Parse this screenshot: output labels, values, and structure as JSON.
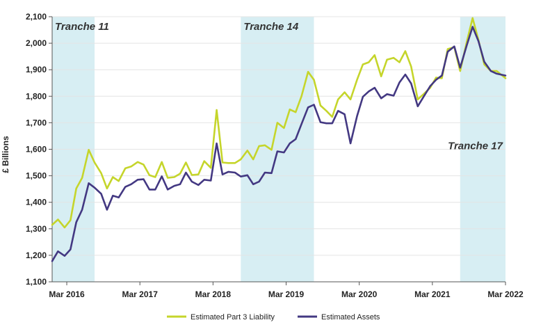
{
  "chart_data": {
    "type": "line",
    "title": "",
    "xlabel": "",
    "ylabel": "£ Billions",
    "ylim": [
      1100,
      2100
    ],
    "yticks": [
      1100,
      1200,
      1300,
      1400,
      1500,
      1600,
      1700,
      1800,
      1900,
      2000,
      2100
    ],
    "ytick_labels": [
      "1,100",
      "1,200",
      "1,300",
      "1,400",
      "1,500",
      "1,600",
      "1,700",
      "1,800",
      "1,900",
      "2,000",
      "2,100"
    ],
    "xlim": [
      2016.0,
      2022.2
    ],
    "xticks": [
      {
        "label": "Mar 2016",
        "value": 2016.2
      },
      {
        "label": "Mar 2017",
        "value": 2017.2
      },
      {
        "label": "Mar 2018",
        "value": 2018.2
      },
      {
        "label": "Mar 2019",
        "value": 2019.2
      },
      {
        "label": "Mar 2020",
        "value": 2020.2
      },
      {
        "label": "Mar 2021",
        "value": 2021.2
      },
      {
        "label": "Mar 2022",
        "value": 2022.2
      }
    ],
    "shaded_periods": [
      {
        "label": "Tranche 11",
        "start": 2016.0,
        "end": 2016.58,
        "label_position": "top-left"
      },
      {
        "label": "Tranche 14",
        "start": 2018.58,
        "end": 2019.58,
        "label_position": "top-left"
      },
      {
        "label": "Tranche 17",
        "start": 2021.58,
        "end": 2022.2,
        "label_position": "middle-right"
      }
    ],
    "series": [
      {
        "name": "Estimated Part 3 Liability",
        "color": "#c5d52b",
        "points": [
          [
            2016.0,
            1315
          ],
          [
            2016.08,
            1335
          ],
          [
            2016.17,
            1305
          ],
          [
            2016.25,
            1332
          ],
          [
            2016.33,
            1452
          ],
          [
            2016.41,
            1492
          ],
          [
            2016.5,
            1598
          ],
          [
            2016.58,
            1550
          ],
          [
            2016.67,
            1510
          ],
          [
            2016.75,
            1452
          ],
          [
            2016.83,
            1495
          ],
          [
            2016.91,
            1480
          ],
          [
            2017.0,
            1528
          ],
          [
            2017.08,
            1535
          ],
          [
            2017.17,
            1552
          ],
          [
            2017.25,
            1542
          ],
          [
            2017.33,
            1502
          ],
          [
            2017.41,
            1495
          ],
          [
            2017.5,
            1552
          ],
          [
            2017.58,
            1492
          ],
          [
            2017.67,
            1495
          ],
          [
            2017.75,
            1508
          ],
          [
            2017.83,
            1550
          ],
          [
            2017.91,
            1503
          ],
          [
            2018.0,
            1505
          ],
          [
            2018.08,
            1555
          ],
          [
            2018.17,
            1530
          ],
          [
            2018.25,
            1748
          ],
          [
            2018.33,
            1550
          ],
          [
            2018.41,
            1548
          ],
          [
            2018.5,
            1548
          ],
          [
            2018.58,
            1562
          ],
          [
            2018.67,
            1595
          ],
          [
            2018.75,
            1562
          ],
          [
            2018.83,
            1612
          ],
          [
            2018.91,
            1615
          ],
          [
            2019.0,
            1598
          ],
          [
            2019.08,
            1700
          ],
          [
            2019.17,
            1680
          ],
          [
            2019.25,
            1750
          ],
          [
            2019.33,
            1740
          ],
          [
            2019.41,
            1800
          ],
          [
            2019.5,
            1892
          ],
          [
            2019.58,
            1862
          ],
          [
            2019.67,
            1765
          ],
          [
            2019.75,
            1745
          ],
          [
            2019.83,
            1722
          ],
          [
            2019.91,
            1788
          ],
          [
            2020.0,
            1815
          ],
          [
            2020.08,
            1788
          ],
          [
            2020.17,
            1862
          ],
          [
            2020.25,
            1920
          ],
          [
            2020.33,
            1928
          ],
          [
            2020.41,
            1955
          ],
          [
            2020.5,
            1875
          ],
          [
            2020.58,
            1938
          ],
          [
            2020.67,
            1945
          ],
          [
            2020.75,
            1928
          ],
          [
            2020.83,
            1970
          ],
          [
            2020.91,
            1912
          ],
          [
            2021.0,
            1788
          ],
          [
            2021.08,
            1808
          ],
          [
            2021.17,
            1832
          ],
          [
            2021.25,
            1870
          ],
          [
            2021.33,
            1868
          ],
          [
            2021.41,
            1978
          ],
          [
            2021.5,
            1985
          ],
          [
            2021.58,
            1895
          ],
          [
            2021.67,
            2005
          ],
          [
            2021.75,
            2095
          ],
          [
            2021.83,
            2012
          ],
          [
            2021.91,
            1920
          ],
          [
            2022.0,
            1895
          ],
          [
            2022.08,
            1895
          ],
          [
            2022.2,
            1868
          ]
        ]
      },
      {
        "name": "Estimated Assets",
        "color": "#433882",
        "points": [
          [
            2016.0,
            1178
          ],
          [
            2016.08,
            1215
          ],
          [
            2016.17,
            1198
          ],
          [
            2016.25,
            1222
          ],
          [
            2016.33,
            1325
          ],
          [
            2016.41,
            1372
          ],
          [
            2016.5,
            1472
          ],
          [
            2016.58,
            1455
          ],
          [
            2016.67,
            1432
          ],
          [
            2016.75,
            1372
          ],
          [
            2016.83,
            1425
          ],
          [
            2016.91,
            1418
          ],
          [
            2017.0,
            1458
          ],
          [
            2017.08,
            1468
          ],
          [
            2017.17,
            1485
          ],
          [
            2017.25,
            1487
          ],
          [
            2017.33,
            1448
          ],
          [
            2017.41,
            1448
          ],
          [
            2017.5,
            1498
          ],
          [
            2017.58,
            1448
          ],
          [
            2017.67,
            1462
          ],
          [
            2017.75,
            1468
          ],
          [
            2017.83,
            1512
          ],
          [
            2017.91,
            1478
          ],
          [
            2018.0,
            1465
          ],
          [
            2018.08,
            1485
          ],
          [
            2018.17,
            1482
          ],
          [
            2018.25,
            1622
          ],
          [
            2018.33,
            1505
          ],
          [
            2018.41,
            1515
          ],
          [
            2018.5,
            1512
          ],
          [
            2018.58,
            1497
          ],
          [
            2018.67,
            1502
          ],
          [
            2018.75,
            1468
          ],
          [
            2018.83,
            1478
          ],
          [
            2018.91,
            1512
          ],
          [
            2019.0,
            1510
          ],
          [
            2019.08,
            1592
          ],
          [
            2019.17,
            1588
          ],
          [
            2019.25,
            1622
          ],
          [
            2019.33,
            1638
          ],
          [
            2019.41,
            1695
          ],
          [
            2019.5,
            1758
          ],
          [
            2019.58,
            1768
          ],
          [
            2019.67,
            1702
          ],
          [
            2019.75,
            1698
          ],
          [
            2019.83,
            1698
          ],
          [
            2019.91,
            1745
          ],
          [
            2020.0,
            1732
          ],
          [
            2020.08,
            1622
          ],
          [
            2020.17,
            1725
          ],
          [
            2020.25,
            1798
          ],
          [
            2020.33,
            1818
          ],
          [
            2020.41,
            1832
          ],
          [
            2020.5,
            1792
          ],
          [
            2020.58,
            1808
          ],
          [
            2020.67,
            1802
          ],
          [
            2020.75,
            1852
          ],
          [
            2020.83,
            1882
          ],
          [
            2020.91,
            1848
          ],
          [
            2021.0,
            1762
          ],
          [
            2021.08,
            1798
          ],
          [
            2021.17,
            1838
          ],
          [
            2021.25,
            1862
          ],
          [
            2021.33,
            1878
          ],
          [
            2021.41,
            1968
          ],
          [
            2021.5,
            1988
          ],
          [
            2021.58,
            1908
          ],
          [
            2021.67,
            1992
          ],
          [
            2021.75,
            2062
          ],
          [
            2021.83,
            2008
          ],
          [
            2021.91,
            1930
          ],
          [
            2022.0,
            1895
          ],
          [
            2022.08,
            1885
          ],
          [
            2022.2,
            1878
          ]
        ]
      }
    ],
    "legend": {
      "position": "bottom-center"
    }
  }
}
